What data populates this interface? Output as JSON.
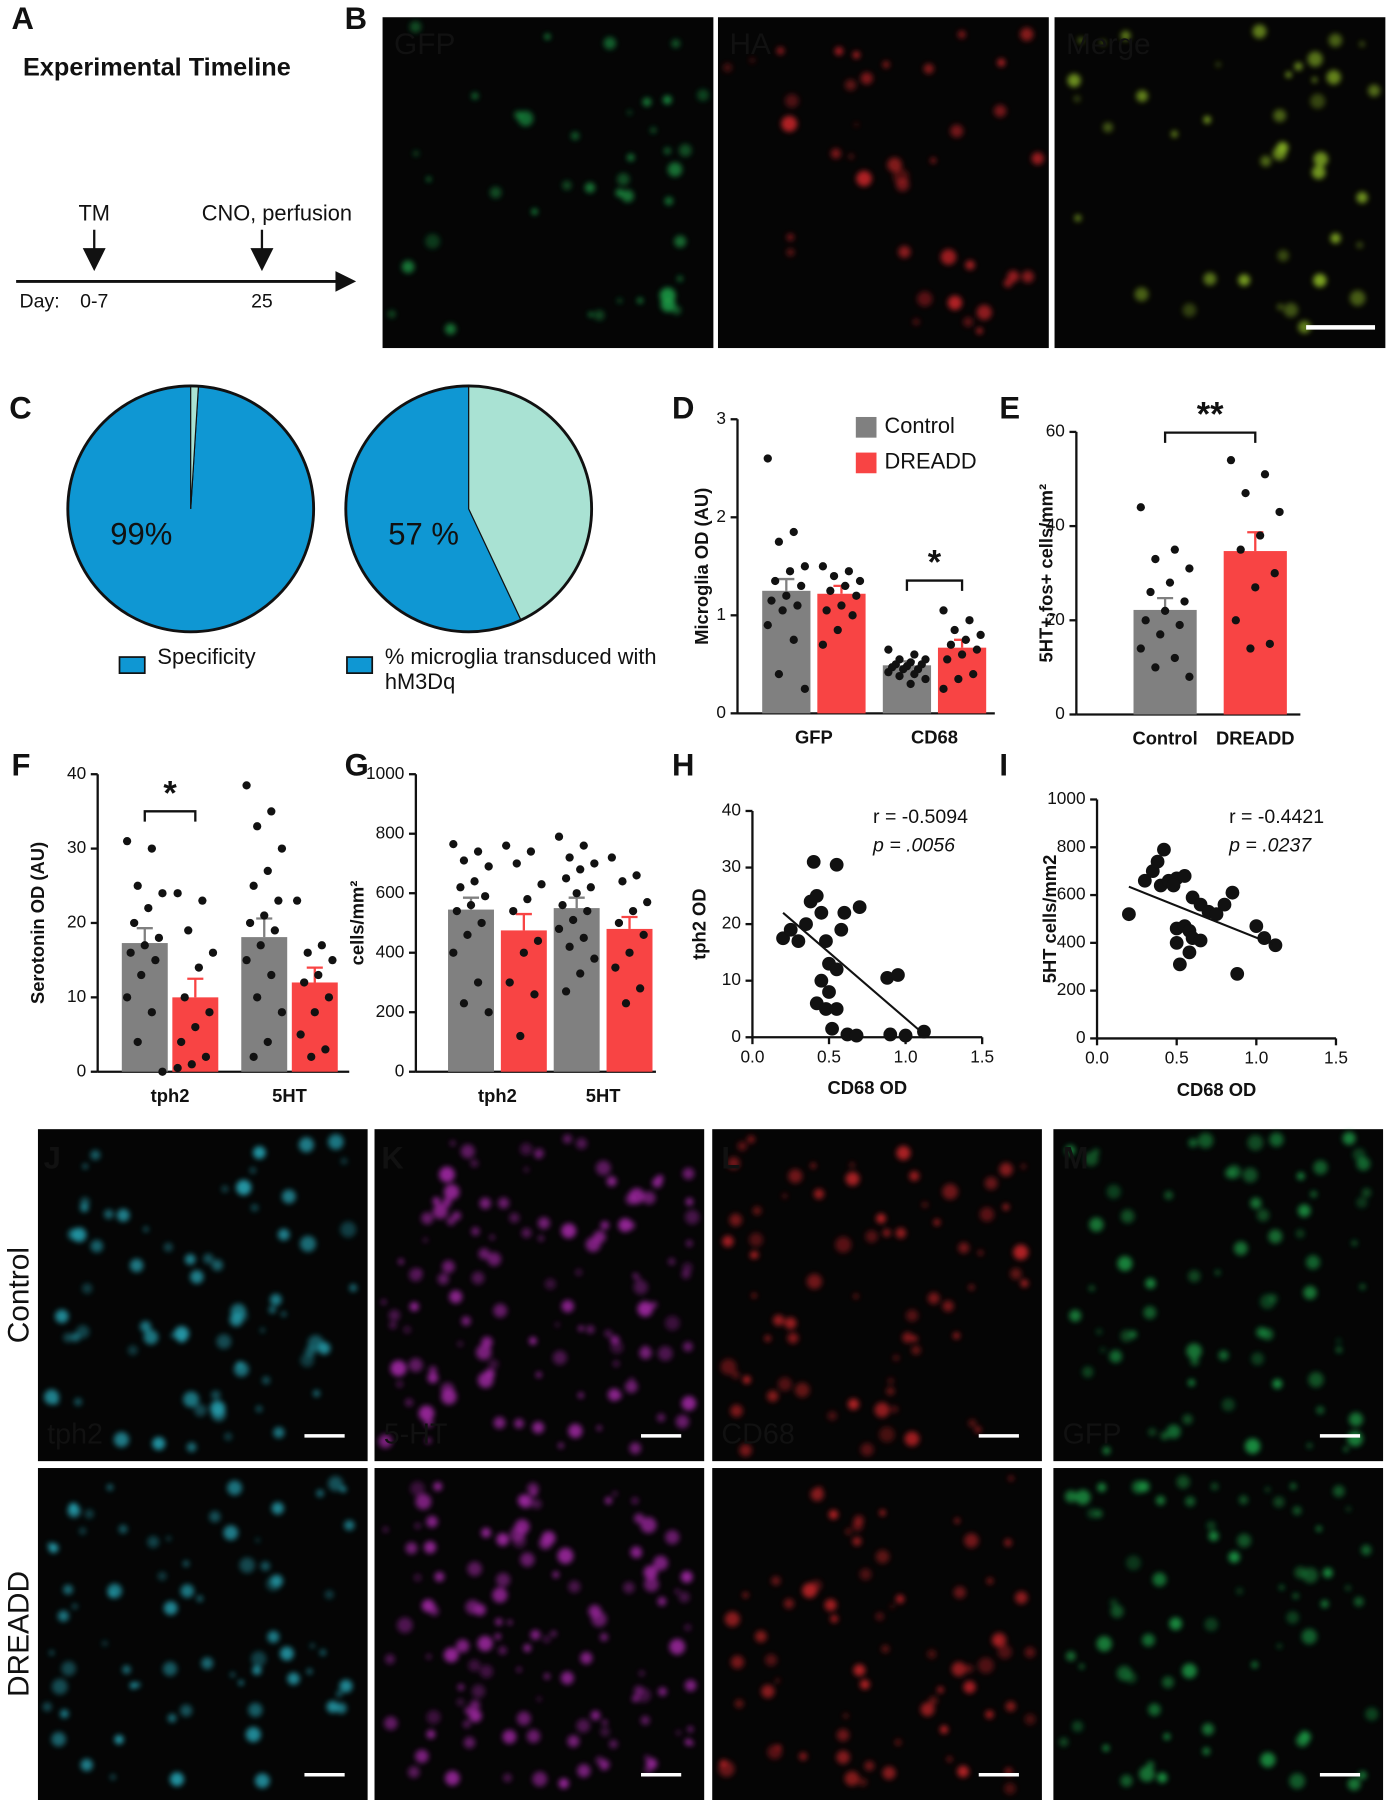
{
  "panel_labels": [
    "A",
    "B",
    "C",
    "D",
    "E",
    "F",
    "G",
    "H",
    "I",
    "J",
    "K",
    "L",
    "M"
  ],
  "timeline": {
    "title": "Experimental Timeline",
    "day_label": "Day:",
    "events": [
      {
        "label": "TM",
        "day": "0-7"
      },
      {
        "label": "CNO, perfusion",
        "day": "25"
      }
    ]
  },
  "images": {
    "top_channels": [
      {
        "label": "GFP",
        "color": "#1fae4f"
      },
      {
        "label": "HA",
        "color": "#d9272c"
      },
      {
        "label": "Merge",
        "color": "#ece21a"
      }
    ],
    "rows": [
      "Control",
      "DREADD"
    ],
    "channels": [
      {
        "label": "tph2",
        "color": "#2ab6c8"
      },
      {
        "label": "5-HT",
        "color": "#b52cb8"
      },
      {
        "label": "CD68",
        "color": "#d9272c"
      },
      {
        "label": "GFP",
        "color": "#1fae4f"
      }
    ]
  },
  "chart_data": [
    {
      "type": "pie",
      "categories": [
        "Specificity",
        null
      ],
      "values": [
        99,
        1
      ],
      "value_labels": [
        "99%",
        null
      ],
      "colors": [
        "#0f97d3",
        "#a9e2d3"
      ]
    },
    {
      "type": "pie",
      "categories": [
        "% microglia transduced with hM3Dq",
        null
      ],
      "values": [
        57,
        43
      ],
      "value_labels": [
        "57 %",
        null
      ],
      "colors": [
        "#0f97d3",
        "#a9e2d3"
      ]
    },
    {
      "type": "bar",
      "ylabel": "Microglia OD (AU)",
      "categories": [
        "GFP",
        "CD68"
      ],
      "series": [
        {
          "name": "Control",
          "color": "#808080",
          "values": [
            1.25,
            0.49
          ],
          "errors": [
            0.12,
            0.04
          ],
          "points": [
            [
              2.6,
              1.85,
              1.75,
              1.5,
              1.45,
              1.35,
              1.3,
              1.2,
              1.15,
              1.1,
              1.05,
              0.9,
              0.75,
              0.4,
              0.25
            ],
            [
              0.65,
              0.6,
              0.55,
              0.55,
              0.52,
              0.5,
              0.5,
              0.48,
              0.47,
              0.45,
              0.45,
              0.42,
              0.4,
              0.38,
              0.35,
              0.3
            ]
          ]
        },
        {
          "name": "DREADD",
          "color": "#f84444",
          "values": [
            1.22,
            0.67
          ],
          "errors": [
            0.08,
            0.08
          ],
          "points": [
            [
              1.5,
              1.45,
              1.4,
              1.35,
              1.3,
              1.25,
              1.2,
              1.1,
              1.05,
              1.0,
              0.85,
              0.7
            ],
            [
              1.05,
              0.95,
              0.85,
              0.8,
              0.75,
              0.7,
              0.65,
              0.6,
              0.55,
              0.4,
              0.35,
              0.25
            ]
          ]
        }
      ],
      "significance": [
        null,
        "*"
      ],
      "ylim": [
        0,
        3
      ],
      "yticks": [
        0,
        1,
        2,
        3
      ]
    },
    {
      "type": "bar",
      "ylabel": "5HT+,fos+ cells/mm²",
      "categories": [
        "Control",
        "DREADD"
      ],
      "values": [
        22.2,
        34.7
      ],
      "errors": [
        2.5,
        4
      ],
      "colors": [
        "#808080",
        "#f84444"
      ],
      "points": [
        [
          44,
          35,
          33,
          31,
          28,
          26,
          24,
          22,
          20,
          19,
          17,
          14,
          12,
          10,
          8
        ],
        [
          54,
          51,
          47,
          43,
          38,
          35,
          30,
          27,
          20,
          15,
          14
        ]
      ],
      "significance": "**",
      "ylim": [
        0,
        60
      ],
      "yticks": [
        0,
        20,
        40,
        60
      ]
    },
    {
      "type": "bar",
      "ylabel": "Serotonin OD (AU)",
      "categories": [
        "tph2",
        "5HT"
      ],
      "series": [
        {
          "name": null,
          "color": "#808080",
          "values": [
            17.3,
            18.1
          ],
          "errors": [
            2,
            2.5
          ],
          "points": [
            [
              31,
              30,
              25,
              24,
              22,
              20,
              18,
              17,
              16,
              15,
              13,
              10,
              8,
              4,
              0
            ],
            [
              38.5,
              35,
              33,
              30,
              27,
              25,
              23,
              21,
              20,
              19,
              17,
              15,
              13,
              10,
              8,
              4,
              2
            ]
          ]
        },
        {
          "name": null,
          "color": "#f84444",
          "values": [
            10,
            12
          ],
          "errors": [
            2.5,
            2
          ],
          "points": [
            [
              24,
              23,
              19,
              16,
              14,
              10,
              8,
              6,
              4,
              2,
              1,
              0.5
            ],
            [
              23,
              17,
              16,
              15,
              13,
              12,
              10,
              8,
              5,
              3,
              2
            ]
          ]
        }
      ],
      "significance": [
        "*",
        null
      ],
      "ylim": [
        0,
        40
      ],
      "yticks": [
        0,
        10,
        20,
        30,
        40
      ]
    },
    {
      "type": "bar",
      "ylabel": "cells/mm²",
      "categories": [
        "tph2",
        "5HT"
      ],
      "series": [
        {
          "name": null,
          "color": "#808080",
          "values": [
            545,
            550
          ],
          "errors": [
            40,
            35
          ],
          "points": [
            [
              765,
              740,
              710,
              690,
              640,
              620,
              590,
              560,
              540,
              500,
              460,
              400,
              300,
              230,
              200
            ],
            [
              790,
              760,
              720,
              700,
              680,
              650,
              620,
              600,
              560,
              540,
              510,
              480,
              450,
              420,
              380,
              330,
              270
            ]
          ]
        },
        {
          "name": null,
          "color": "#f84444",
          "values": [
            475,
            480
          ],
          "errors": [
            55,
            40
          ],
          "points": [
            [
              760,
              740,
              700,
              630,
              580,
              540,
              440,
              400,
              300,
              260,
              120
            ],
            [
              720,
              660,
              640,
              570,
              540,
              500,
              460,
              400,
              350,
              280,
              230
            ]
          ]
        }
      ],
      "significance": [
        null,
        null
      ],
      "ylim": [
        0,
        1000
      ],
      "yticks": [
        0,
        200,
        400,
        600,
        800,
        1000
      ]
    },
    {
      "type": "scatter",
      "xlabel": "CD68 OD",
      "ylabel": "tph2 OD",
      "x": [
        0.2,
        0.25,
        0.3,
        0.35,
        0.38,
        0.42,
        0.45,
        0.4,
        0.48,
        0.5,
        0.55,
        0.6,
        0.58,
        0.7,
        0.45,
        0.5,
        0.55,
        0.42,
        0.48,
        0.52,
        0.55,
        0.62,
        0.68,
        0.88,
        0.95,
        1.0,
        1.12,
        0.9
      ],
      "y": [
        17.5,
        19,
        17,
        20,
        24,
        25,
        22,
        31,
        17,
        13,
        30.5,
        22,
        19,
        23,
        10,
        8,
        12,
        6,
        5,
        1.5,
        5,
        0.5,
        0.3,
        10.5,
        11,
        0.3,
        1,
        0.5
      ],
      "trendline": {
        "x": [
          0.2,
          1.1
        ],
        "y": [
          22,
          1
        ]
      },
      "stats": [
        "r = -0.5094",
        "p = .0056"
      ],
      "xlim": [
        0,
        1.5
      ],
      "xticks": [
        {
          "value": 0,
          "label": "0.0"
        },
        0.5,
        {
          "value": 1,
          "label": "1.0"
        },
        1.5
      ],
      "ylim": [
        0,
        40
      ],
      "yticks": [
        0,
        10,
        20,
        30,
        40
      ]
    },
    {
      "type": "scatter",
      "xlabel": "CD68 OD",
      "ylabel": "5HT cells/mm2",
      "x": [
        0.2,
        0.3,
        0.35,
        0.38,
        0.42,
        0.4,
        0.45,
        0.5,
        0.48,
        0.55,
        0.6,
        0.65,
        0.7,
        0.75,
        0.8,
        0.85,
        0.5,
        0.55,
        0.58,
        0.5,
        0.6,
        0.65,
        0.52,
        0.58,
        0.88,
        1.0,
        1.05,
        1.12
      ],
      "y": [
        520,
        660,
        700,
        740,
        790,
        640,
        660,
        670,
        640,
        680,
        590,
        560,
        530,
        520,
        560,
        610,
        460,
        470,
        450,
        400,
        420,
        410,
        310,
        360,
        270,
        470,
        420,
        390
      ],
      "trendline": {
        "x": [
          0.2,
          1.1
        ],
        "y": [
          635,
          395
        ]
      },
      "stats": [
        "r = -0.4421",
        "p = .0237"
      ],
      "xlim": [
        0,
        1.5
      ],
      "xticks": [
        {
          "value": 0,
          "label": "0.0"
        },
        0.5,
        {
          "value": 1,
          "label": "1.0"
        },
        1.5
      ],
      "ylim": [
        0,
        1000
      ],
      "yticks": [
        0,
        200,
        400,
        600,
        800,
        1000
      ]
    }
  ]
}
